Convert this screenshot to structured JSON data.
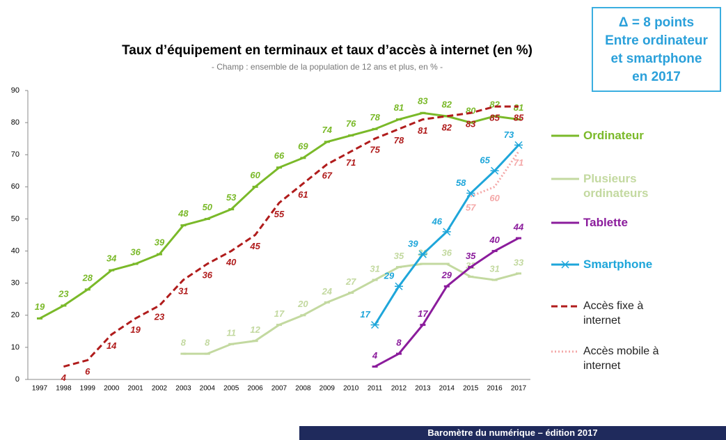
{
  "chart_data": {
    "type": "line",
    "title": "Taux d’équipement en terminaux et  taux d’accès à internet (en %)",
    "subtitle": "- Champ : ensemble de la population de 12 ans et plus, en % -",
    "annotation": [
      "Δ = 8 points",
      "Entre ordinateur",
      "et smartphone",
      "en 2017"
    ],
    "footer": "Baromètre  du numérique – édition 2017",
    "categories": [
      "1997",
      "1998",
      "1999",
      "2000",
      "2001",
      "2002",
      "2003",
      "2004",
      "2005",
      "2006",
      "2007",
      "2008",
      "2009",
      "2010",
      "2011",
      "2012",
      "2013",
      "2014",
      "2015",
      "2016",
      "2017"
    ],
    "ylim": [
      0,
      90
    ],
    "yticks": [
      0,
      10,
      20,
      30,
      40,
      50,
      60,
      70,
      80,
      90
    ],
    "grid": false,
    "series": [
      {
        "name": "Ordinateur",
        "color": "#7ab929",
        "style": "solid",
        "marker": "dash",
        "values": [
          19,
          23,
          28,
          34,
          36,
          39,
          48,
          50,
          53,
          60,
          66,
          69,
          74,
          76,
          78,
          81,
          83,
          82,
          80,
          82,
          81
        ]
      },
      {
        "name": "Plusieurs ordinateurs",
        "color": "#c3d9a0",
        "style": "solid",
        "marker": "dash",
        "values": [
          null,
          null,
          null,
          null,
          null,
          null,
          8,
          8,
          11,
          12,
          17,
          20,
          24,
          27,
          31,
          35,
          36,
          36,
          32,
          31,
          33
        ]
      },
      {
        "name": "Tablette",
        "color": "#8b1c9c",
        "style": "solid",
        "marker": "dash",
        "values": [
          null,
          null,
          null,
          null,
          null,
          null,
          null,
          null,
          null,
          null,
          null,
          null,
          null,
          null,
          4,
          8,
          17,
          29,
          35,
          40,
          44
        ]
      },
      {
        "name": "Smartphone",
        "color": "#1ea6da",
        "style": "solid",
        "marker": "star",
        "values": [
          null,
          null,
          null,
          null,
          null,
          null,
          null,
          null,
          null,
          null,
          null,
          null,
          null,
          null,
          17,
          29,
          39,
          46,
          58,
          65,
          73
        ]
      },
      {
        "name": "Accès fixe à internet",
        "color": "#b01c1c",
        "style": "dashed",
        "marker": "none",
        "values": [
          null,
          4,
          6,
          14,
          19,
          23,
          31,
          36,
          40,
          45,
          55,
          61,
          67,
          71,
          75,
          78,
          81,
          82,
          83,
          85,
          85
        ]
      },
      {
        "name": "Accès mobile à internet",
        "color": "#f4a8a8",
        "style": "dotted",
        "marker": "none",
        "values": [
          null,
          null,
          null,
          null,
          null,
          null,
          null,
          null,
          null,
          null,
          null,
          null,
          null,
          null,
          null,
          null,
          null,
          null,
          57,
          60,
          71
        ]
      }
    ]
  }
}
